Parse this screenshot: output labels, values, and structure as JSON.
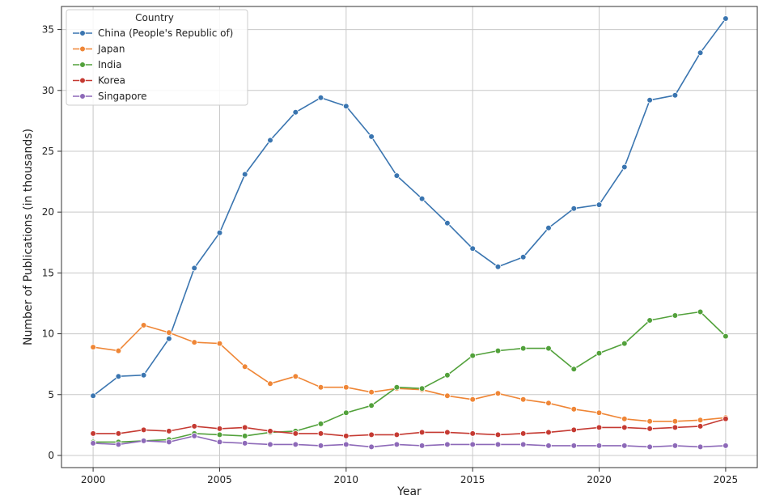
{
  "chart_data": {
    "type": "line",
    "xlabel": "Year",
    "ylabel": "Number of Publications (in thousands)",
    "x": [
      2000,
      2001,
      2002,
      2003,
      2004,
      2005,
      2006,
      2007,
      2008,
      2009,
      2010,
      2011,
      2012,
      2013,
      2014,
      2015,
      2016,
      2017,
      2018,
      2019,
      2020,
      2021,
      2022,
      2023,
      2024,
      2025
    ],
    "xlim": [
      1998.75,
      2026.25
    ],
    "ylim": [
      -1.0,
      36.9
    ],
    "xticks": [
      2000,
      2005,
      2010,
      2015,
      2020,
      2025
    ],
    "yticks": [
      0,
      5,
      10,
      15,
      20,
      25,
      30,
      35
    ],
    "grid": true,
    "legend": {
      "title": "Country",
      "placement": "top-left"
    },
    "series": [
      {
        "name": "China (People's Republic of)",
        "color": "#3a75b0",
        "values": [
          4.9,
          6.5,
          6.6,
          9.6,
          15.4,
          18.3,
          23.1,
          25.9,
          28.2,
          29.4,
          28.7,
          26.2,
          23.0,
          21.1,
          19.1,
          17.0,
          15.5,
          16.3,
          18.7,
          20.3,
          20.6,
          23.7,
          29.2,
          29.6,
          33.1,
          35.9
        ]
      },
      {
        "name": "Japan",
        "color": "#ef8636",
        "values": [
          8.9,
          8.6,
          10.7,
          10.1,
          9.3,
          9.2,
          7.3,
          5.9,
          6.5,
          5.6,
          5.6,
          5.2,
          5.5,
          5.4,
          4.9,
          4.6,
          5.1,
          4.6,
          4.3,
          3.8,
          3.5,
          3.0,
          2.8,
          2.8,
          2.9,
          3.1
        ]
      },
      {
        "name": "India",
        "color": "#52a13b",
        "values": [
          1.1,
          1.1,
          1.2,
          1.3,
          1.8,
          1.7,
          1.6,
          1.9,
          2.0,
          2.6,
          3.5,
          4.1,
          5.6,
          5.5,
          6.6,
          8.2,
          8.6,
          8.8,
          8.8,
          7.1,
          8.4,
          9.2,
          11.1,
          11.5,
          11.8,
          9.8
        ]
      },
      {
        "name": "Korea",
        "color": "#c53a32",
        "values": [
          1.8,
          1.8,
          2.1,
          2.0,
          2.4,
          2.2,
          2.3,
          2.0,
          1.8,
          1.8,
          1.6,
          1.7,
          1.7,
          1.9,
          1.9,
          1.8,
          1.7,
          1.8,
          1.9,
          2.1,
          2.3,
          2.3,
          2.2,
          2.3,
          2.4,
          3.0
        ]
      },
      {
        "name": "Singapore",
        "color": "#8d69b8",
        "values": [
          1.0,
          0.9,
          1.2,
          1.1,
          1.6,
          1.1,
          1.0,
          0.9,
          0.9,
          0.8,
          0.9,
          0.7,
          0.9,
          0.8,
          0.9,
          0.9,
          0.9,
          0.9,
          0.8,
          0.8,
          0.8,
          0.8,
          0.7,
          0.8,
          0.7,
          0.8
        ]
      }
    ]
  }
}
